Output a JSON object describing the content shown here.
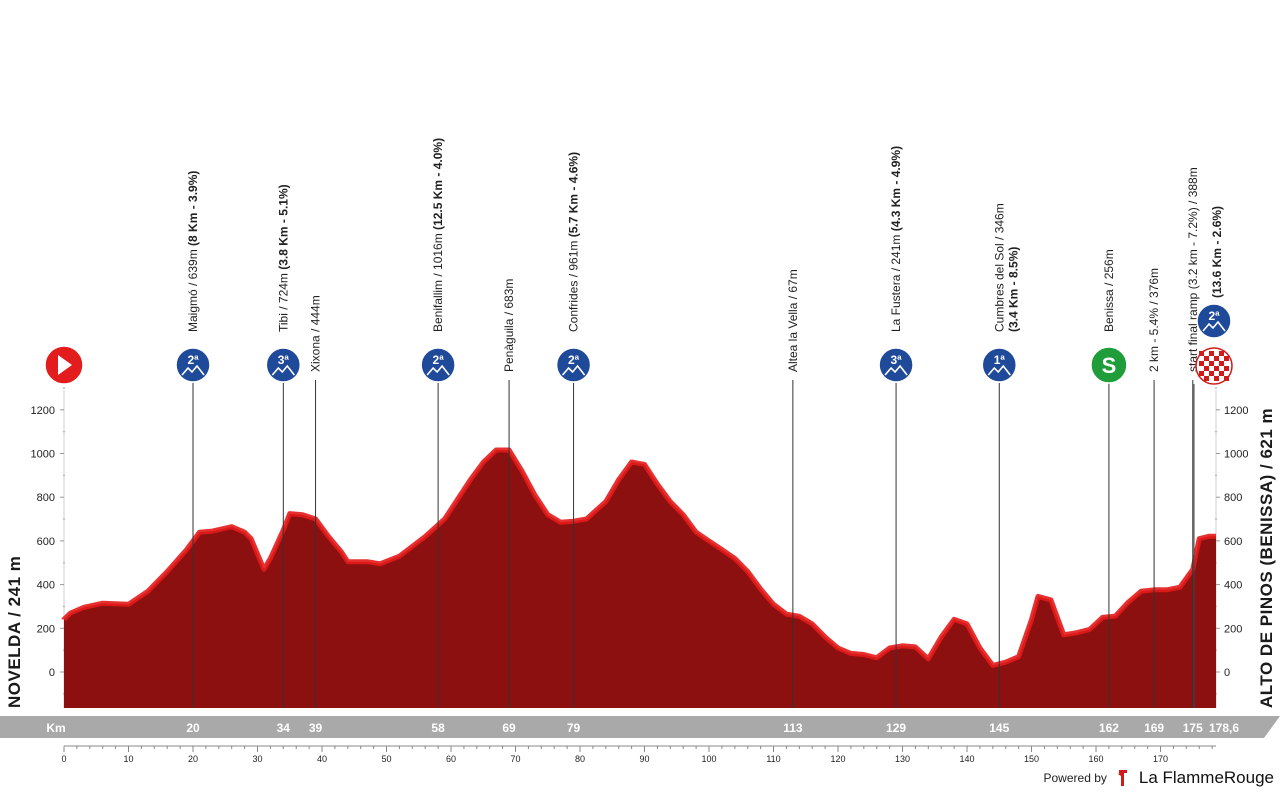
{
  "chart_data": {
    "type": "area",
    "start_label": "NOVELDA / 241 m",
    "finish_label": "ALTO DE PINOS (BENISSA) / 621 m",
    "x_axis_title": "Km",
    "total_distance_label": "178,6",
    "xlim": [
      0,
      178.6
    ],
    "ylim": [
      -150,
      1350
    ],
    "y_ticks": [
      0,
      200,
      400,
      600,
      800,
      1000,
      1200
    ],
    "x_ticks": [
      0,
      10,
      20,
      30,
      40,
      50,
      60,
      70,
      80,
      90,
      100,
      110,
      120,
      130,
      140,
      150,
      160,
      170
    ],
    "fill_color": "#8c1010",
    "edge_color": "#e41b1b",
    "profile": [
      [
        0,
        241
      ],
      [
        1,
        270
      ],
      [
        3,
        295
      ],
      [
        6,
        315
      ],
      [
        10,
        310
      ],
      [
        13,
        370
      ],
      [
        16,
        460
      ],
      [
        19,
        560
      ],
      [
        21,
        640
      ],
      [
        23,
        645
      ],
      [
        26,
        665
      ],
      [
        28,
        640
      ],
      [
        29,
        610
      ],
      [
        30,
        540
      ],
      [
        31,
        470
      ],
      [
        32,
        520
      ],
      [
        34,
        650
      ],
      [
        35,
        725
      ],
      [
        37,
        720
      ],
      [
        39,
        700
      ],
      [
        41,
        620
      ],
      [
        43,
        550
      ],
      [
        44,
        505
      ],
      [
        47,
        505
      ],
      [
        49,
        495
      ],
      [
        52,
        530
      ],
      [
        56,
        620
      ],
      [
        59,
        700
      ],
      [
        61,
        790
      ],
      [
        63,
        880
      ],
      [
        65,
        960
      ],
      [
        67,
        1016
      ],
      [
        69,
        1016
      ],
      [
        71,
        920
      ],
      [
        73,
        810
      ],
      [
        75,
        720
      ],
      [
        77,
        685
      ],
      [
        79,
        690
      ],
      [
        81,
        700
      ],
      [
        84,
        780
      ],
      [
        86,
        880
      ],
      [
        88,
        961
      ],
      [
        90,
        950
      ],
      [
        92,
        860
      ],
      [
        94,
        780
      ],
      [
        96,
        720
      ],
      [
        98,
        640
      ],
      [
        100,
        600
      ],
      [
        102,
        560
      ],
      [
        104,
        520
      ],
      [
        106,
        460
      ],
      [
        108,
        380
      ],
      [
        110,
        310
      ],
      [
        112,
        265
      ],
      [
        114,
        255
      ],
      [
        116,
        220
      ],
      [
        118,
        160
      ],
      [
        120,
        110
      ],
      [
        122,
        85
      ],
      [
        124,
        80
      ],
      [
        126,
        65
      ],
      [
        128,
        110
      ],
      [
        130,
        120
      ],
      [
        132,
        115
      ],
      [
        134,
        60
      ],
      [
        136,
        160
      ],
      [
        138,
        241
      ],
      [
        140,
        220
      ],
      [
        142,
        110
      ],
      [
        144,
        30
      ],
      [
        146,
        45
      ],
      [
        148,
        70
      ],
      [
        150,
        240
      ],
      [
        151,
        346
      ],
      [
        153,
        330
      ],
      [
        154,
        250
      ],
      [
        155,
        170
      ],
      [
        157,
        180
      ],
      [
        159,
        195
      ],
      [
        161,
        250
      ],
      [
        163,
        256
      ],
      [
        165,
        320
      ],
      [
        167,
        370
      ],
      [
        169,
        376
      ],
      [
        171,
        376
      ],
      [
        173,
        388
      ],
      [
        175,
        470
      ],
      [
        176,
        610
      ],
      [
        177.5,
        621
      ],
      [
        178.6,
        621
      ]
    ],
    "points": [
      {
        "km": 0,
        "km_label": "",
        "name": "",
        "detail": "",
        "marker": "start",
        "marker_label": ""
      },
      {
        "km": 20,
        "km_label": "20",
        "name": "Maigmó / 639m",
        "detail": "(8 Km - 3.9%)",
        "marker": "climb",
        "marker_label": "2ª"
      },
      {
        "km": 34,
        "km_label": "34",
        "name": "Tibi / 724m",
        "detail": "(3.8 Km - 5.1%)",
        "marker": "climb",
        "marker_label": "3ª"
      },
      {
        "km": 39,
        "km_label": "39",
        "name": "Xixona / 444m",
        "detail": "",
        "marker": "none",
        "marker_label": ""
      },
      {
        "km": 58,
        "km_label": "58",
        "name": "Benifallim / 1016m",
        "detail": "(12.5 Km - 4.0%)",
        "marker": "climb",
        "marker_label": "2ª"
      },
      {
        "km": 69,
        "km_label": "69",
        "name": "Penàguila / 683m",
        "detail": "",
        "marker": "none",
        "marker_label": ""
      },
      {
        "km": 79,
        "km_label": "79",
        "name": "Confrides / 961m",
        "detail": "(5.7 Km - 4.6%)",
        "marker": "climb",
        "marker_label": "2ª"
      },
      {
        "km": 113,
        "km_label": "113",
        "name": "Altea la Vella / 67m",
        "detail": "",
        "marker": "none",
        "marker_label": ""
      },
      {
        "km": 129,
        "km_label": "129",
        "name": "La Fustera / 241m",
        "detail": "(4.3 Km - 4.9%)",
        "marker": "climb",
        "marker_label": "3ª"
      },
      {
        "km": 145,
        "km_label": "145",
        "name": "Cumbres del Sol / 346m",
        "detail": "(3.4 Km - 8.5%)",
        "marker": "climb",
        "marker_label": "1ª"
      },
      {
        "km": 162,
        "km_label": "162",
        "name": "Benissa / 256m",
        "detail": "",
        "marker": "sprint",
        "marker_label": "S"
      },
      {
        "km": 169,
        "km_label": "169",
        "name": "2 km - 5.4% / 376m",
        "detail": "",
        "marker": "none",
        "marker_label": ""
      },
      {
        "km": 175,
        "km_label": "175",
        "name": "start final ramp (3.2 km - 7.2%) / 388m",
        "detail": "",
        "marker": "none",
        "marker_label": ""
      },
      {
        "km": 178.6,
        "km_label": "",
        "name": "",
        "detail": "(13.6 Km - 2.6%)",
        "marker": "finish",
        "marker_label": "2ª"
      }
    ]
  },
  "footer": {
    "powered_by": "Powered by",
    "brand": "La FlammeRouge"
  },
  "colors": {
    "climb_badge": "#1f4a9a",
    "sprint_badge": "#1f9d3a",
    "start_badge": "#e31d1d",
    "km_bar": "#a9a9a9"
  }
}
